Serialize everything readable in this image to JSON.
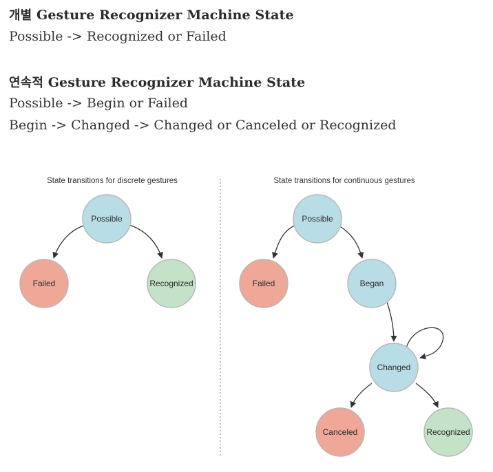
{
  "sections": [
    {
      "heading_ko": "개별",
      "heading_en": "Gesture Recognizer Machine State",
      "lines": [
        "Possible -> Recognized or Failed"
      ]
    },
    {
      "heading_ko": "연속적",
      "heading_en": "Gesture Recognizer Machine State",
      "lines": [
        "Possible -> Begin or Failed",
        "Begin -> Changed -> Changed or Canceled or Recognized"
      ]
    }
  ],
  "diagram": {
    "discrete": {
      "title": "State transitions for discrete gestures",
      "nodes": {
        "possible": "Possible",
        "failed": "Failed",
        "recognized": "Recognized"
      }
    },
    "continuous": {
      "title": "State transitions for continuous gestures",
      "nodes": {
        "possible": "Possible",
        "failed": "Failed",
        "began": "Began",
        "changed": "Changed",
        "canceled": "Canceled",
        "recognized": "Recognized"
      }
    },
    "colors": {
      "blue_fill": "#b9dde6",
      "red_fill": "#efa898",
      "green_fill": "#c3e2c8",
      "node_stroke": "#b8b8b8",
      "arrow": "#333333",
      "divider": "#bfbfbf"
    }
  }
}
